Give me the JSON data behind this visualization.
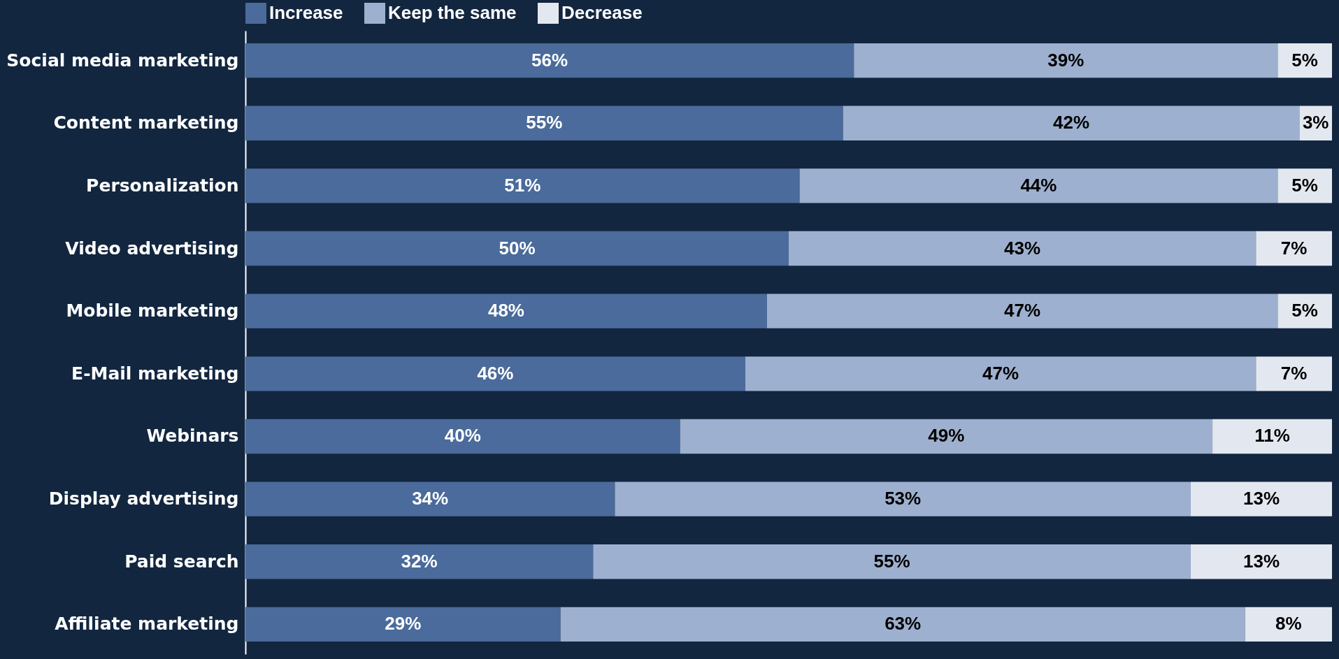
{
  "chart_data": {
    "type": "bar",
    "orientation": "horizontal",
    "stacked": true,
    "legend": "top",
    "tick_labels": "y",
    "categories": [
      "Social media marketing",
      "Content marketing",
      "Personalization",
      "Video advertising",
      "Mobile marketing",
      "E-Mail marketing",
      "Webinars",
      "Display advertising",
      "Paid search",
      "Affiliate marketing"
    ],
    "series": [
      {
        "name": "Increase",
        "color": "#4a6b9b",
        "values": [
          56,
          55,
          51,
          50,
          48,
          46,
          40,
          34,
          32,
          29
        ],
        "value_labels": [
          "56%",
          "55%",
          "51%",
          "50%",
          "48%",
          "46%",
          "40%",
          "34%",
          "32%",
          "29%"
        ]
      },
      {
        "name": "Keep the same",
        "color": "#9eb0cf",
        "values": [
          39,
          42,
          44,
          43,
          47,
          47,
          49,
          53,
          55,
          63
        ],
        "value_labels": [
          "39%",
          "42%",
          "44%",
          "43%",
          "47%",
          "47%",
          "49%",
          "53%",
          "55%",
          "63%"
        ]
      },
      {
        "name": "Decrease",
        "color": "#e3e8f0",
        "values": [
          5,
          3,
          5,
          7,
          5,
          7,
          11,
          13,
          13,
          8
        ],
        "value_labels": [
          "5%",
          "3%",
          "5%",
          "7%",
          "5%",
          "7%",
          "11%",
          "13%",
          "13%",
          "8%"
        ]
      }
    ]
  }
}
